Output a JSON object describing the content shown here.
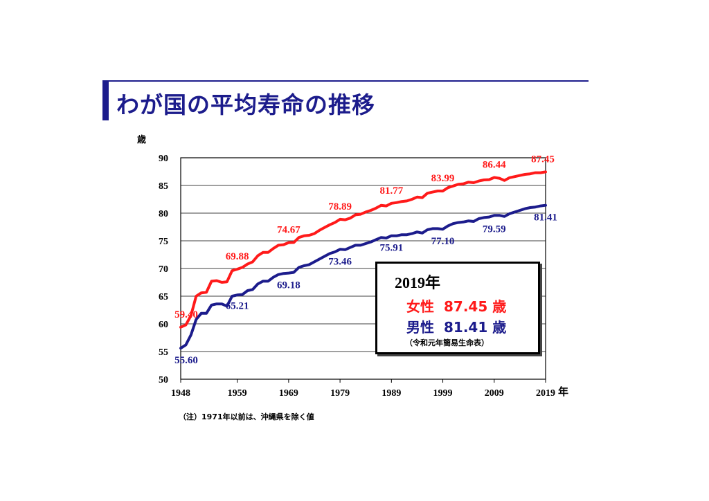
{
  "title": "わが国の平均寿命の推移",
  "note": "（注）1971年以前は、沖縄県を除く値",
  "legend": {
    "year": "2019年",
    "female_label": "女性",
    "female_value": "87.45 歳",
    "male_label": "男性",
    "male_value": "81.41 歳",
    "source": "（令和元年簡易生命表）"
  },
  "colors": {
    "female": "#ff1a1a",
    "male": "#1c1c8c",
    "title": "#1c1c8c"
  },
  "chart_data": {
    "type": "line",
    "ylabel": "歳",
    "xlabel": "年",
    "ylim": [
      50,
      90
    ],
    "xlim": [
      1948,
      2019
    ],
    "y_ticks": [
      "50",
      "55",
      "60",
      "65",
      "70",
      "75",
      "80",
      "85",
      "90"
    ],
    "x_ticks": [
      "1948",
      "1959",
      "1969",
      "1979",
      "1989",
      "1999",
      "2009",
      "2019"
    ],
    "x_tick_years": [
      1948,
      1959,
      1969,
      1979,
      1989,
      1999,
      2009,
      2019
    ],
    "grid": "horizontal",
    "series": [
      {
        "name": "女性",
        "x": [
          1948,
          1949,
          1950,
          1951,
          1952,
          1953,
          1954,
          1955,
          1956,
          1957,
          1958,
          1959,
          1960,
          1961,
          1962,
          1963,
          1964,
          1965,
          1966,
          1967,
          1968,
          1969,
          1970,
          1971,
          1972,
          1973,
          1974,
          1975,
          1976,
          1977,
          1978,
          1979,
          1980,
          1981,
          1982,
          1983,
          1984,
          1985,
          1986,
          1987,
          1988,
          1989,
          1990,
          1991,
          1992,
          1993,
          1994,
          1995,
          1996,
          1997,
          1998,
          1999,
          2000,
          2001,
          2002,
          2003,
          2004,
          2005,
          2006,
          2007,
          2008,
          2009,
          2010,
          2011,
          2012,
          2013,
          2014,
          2015,
          2016,
          2017,
          2018,
          2019
        ],
        "y": [
          59.4,
          59.8,
          61.5,
          65.0,
          65.6,
          65.7,
          67.7,
          67.8,
          67.5,
          67.6,
          69.6,
          69.88,
          70.2,
          70.8,
          71.2,
          72.3,
          72.9,
          72.9,
          73.6,
          74.2,
          74.3,
          74.67,
          74.7,
          75.6,
          75.9,
          76.0,
          76.3,
          76.9,
          77.4,
          77.9,
          78.3,
          78.89,
          78.8,
          79.1,
          79.7,
          79.8,
          80.2,
          80.5,
          80.9,
          81.4,
          81.3,
          81.77,
          81.9,
          82.1,
          82.2,
          82.5,
          82.9,
          82.8,
          83.6,
          83.8,
          84.0,
          83.99,
          84.6,
          84.9,
          85.2,
          85.3,
          85.6,
          85.5,
          85.8,
          86.0,
          86.05,
          86.44,
          86.3,
          85.9,
          86.4,
          86.6,
          86.8,
          87.0,
          87.1,
          87.3,
          87.3,
          87.45
        ],
        "labels": [
          {
            "year": 1948,
            "value": "59.40"
          },
          {
            "year": 1959,
            "value": "69.88"
          },
          {
            "year": 1969,
            "value": "74.67"
          },
          {
            "year": 1979,
            "value": "78.89"
          },
          {
            "year": 1989,
            "value": "81.77"
          },
          {
            "year": 1999,
            "value": "83.99"
          },
          {
            "year": 2009,
            "value": "86.44"
          },
          {
            "year": 2019,
            "value": "87.45"
          }
        ]
      },
      {
        "name": "男性",
        "x": [
          1948,
          1949,
          1950,
          1951,
          1952,
          1953,
          1954,
          1955,
          1956,
          1957,
          1958,
          1959,
          1960,
          1961,
          1962,
          1963,
          1964,
          1965,
          1966,
          1967,
          1968,
          1969,
          1970,
          1971,
          1972,
          1973,
          1974,
          1975,
          1976,
          1977,
          1978,
          1979,
          1980,
          1981,
          1982,
          1983,
          1984,
          1985,
          1986,
          1987,
          1988,
          1989,
          1990,
          1991,
          1992,
          1993,
          1994,
          1995,
          1996,
          1997,
          1998,
          1999,
          2000,
          2001,
          2002,
          2003,
          2004,
          2005,
          2006,
          2007,
          2008,
          2009,
          2010,
          2011,
          2012,
          2013,
          2014,
          2015,
          2016,
          2017,
          2018,
          2019
        ],
        "y": [
          55.6,
          56.2,
          58.0,
          60.8,
          61.9,
          61.9,
          63.4,
          63.6,
          63.6,
          63.2,
          65.0,
          65.21,
          65.3,
          66.0,
          66.2,
          67.2,
          67.7,
          67.7,
          68.4,
          68.9,
          69.1,
          69.18,
          69.3,
          70.2,
          70.5,
          70.7,
          71.2,
          71.7,
          72.2,
          72.7,
          73.0,
          73.46,
          73.4,
          73.8,
          74.2,
          74.2,
          74.5,
          74.8,
          75.2,
          75.6,
          75.5,
          75.91,
          75.9,
          76.1,
          76.1,
          76.3,
          76.6,
          76.4,
          77.0,
          77.2,
          77.2,
          77.1,
          77.7,
          78.1,
          78.3,
          78.4,
          78.6,
          78.5,
          79.0,
          79.2,
          79.3,
          79.59,
          79.6,
          79.4,
          79.9,
          80.2,
          80.5,
          80.8,
          81.0,
          81.1,
          81.3,
          81.41
        ],
        "labels": [
          {
            "year": 1948,
            "value": "55.60"
          },
          {
            "year": 1959,
            "value": "65.21"
          },
          {
            "year": 1969,
            "value": "69.18"
          },
          {
            "year": 1979,
            "value": "73.46"
          },
          {
            "year": 1989,
            "value": "75.91"
          },
          {
            "year": 1999,
            "value": "77.10"
          },
          {
            "year": 2009,
            "value": "79.59"
          },
          {
            "year": 2019,
            "value": "81.41"
          }
        ]
      }
    ]
  }
}
